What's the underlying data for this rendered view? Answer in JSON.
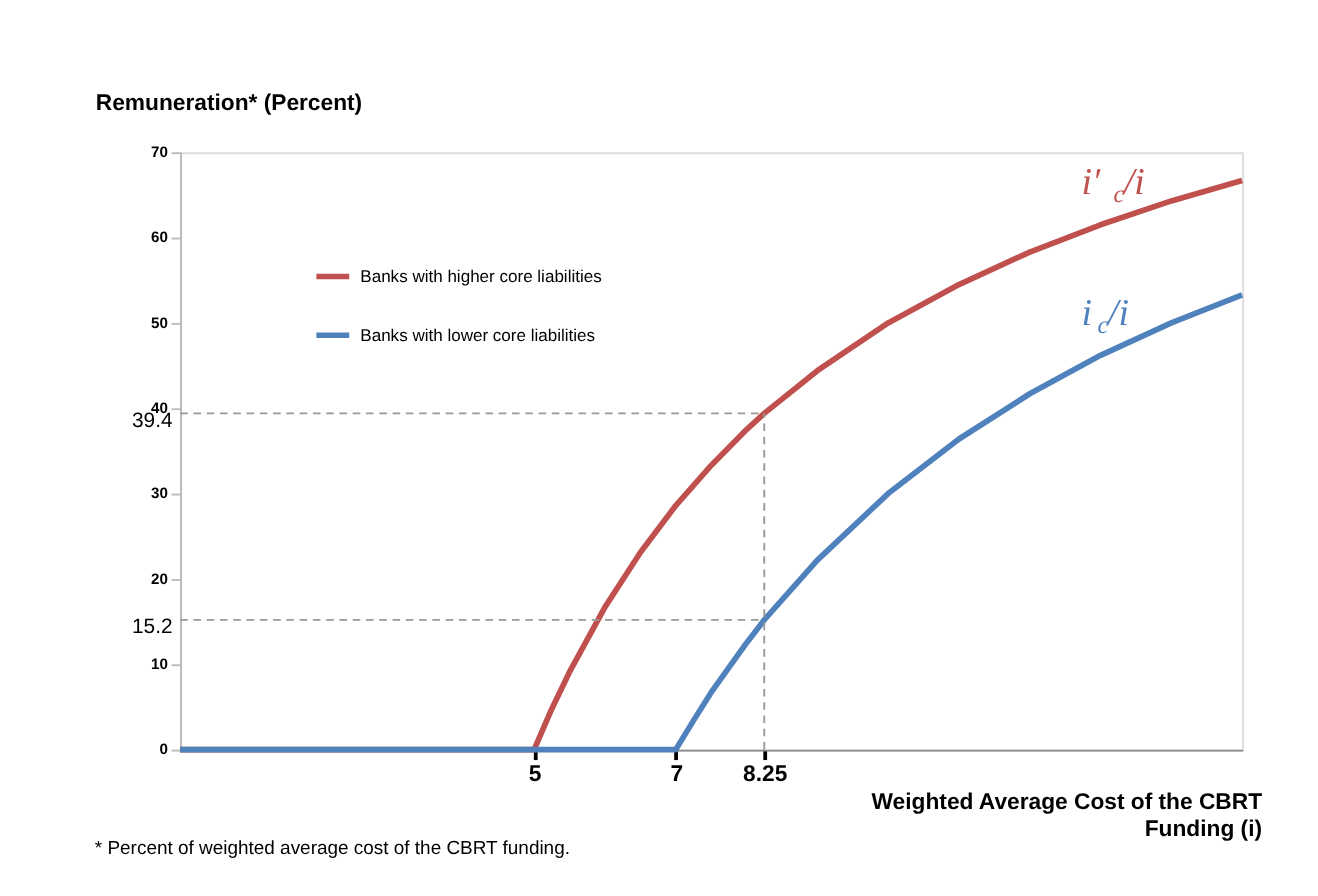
{
  "chart_data": {
    "type": "line",
    "xlabel": "Weighted Average Cost of the CBRT Funding (i)",
    "ylabel": "Remuneration* (Percent)",
    "xlim": [
      0,
      15
    ],
    "xticks": [
      5,
      7,
      {
        "value": 8.25,
        "label": "8.25"
      }
    ],
    "ylim": [
      0,
      70
    ],
    "yticks": [
      0,
      10,
      20,
      30,
      40,
      50,
      60,
      70
    ],
    "grid": false,
    "legend": "top left",
    "line_style": "solid",
    "marker": "none",
    "series": [
      {
        "name": "Banks with higher core liabilities",
        "color": "#c0504d",
        "x": [
          0,
          5,
          5.25,
          5.5,
          6,
          6.5,
          7,
          7.5,
          8,
          8.25,
          9,
          10,
          11,
          12,
          13,
          14,
          15
        ],
        "values": [
          0,
          0,
          4.8,
          9.1,
          16.7,
          23.1,
          28.6,
          33.3,
          37.5,
          39.4,
          44.4,
          50,
          54.5,
          58.3,
          61.5,
          64.3,
          66.7
        ]
      },
      {
        "name": "Banks with lower core liabilities",
        "color": "#4f81bd",
        "x": [
          0,
          7,
          7.25,
          7.5,
          8,
          8.25,
          9,
          10,
          11,
          12,
          13,
          14,
          15
        ],
        "values": [
          0,
          0,
          3.4,
          6.7,
          12.5,
          15.2,
          22.2,
          30,
          36.4,
          41.7,
          46.2,
          50,
          53.3
        ]
      }
    ],
    "ref_lines": [
      {
        "axis": "y",
        "value": 39.4,
        "label": "39.4",
        "line_style": "dashed"
      },
      {
        "axis": "y",
        "value": 15.2,
        "label": "15.2",
        "line_style": "dashed"
      },
      {
        "axis": "x",
        "value": 8.25,
        "label": null,
        "line_style": "dashed"
      }
    ],
    "annotations": [
      "i′$_{c}$/i",
      "i$_{c}$/i",
      "* Percent of weighted average cost of the CBRT funding."
    ]
  }
}
